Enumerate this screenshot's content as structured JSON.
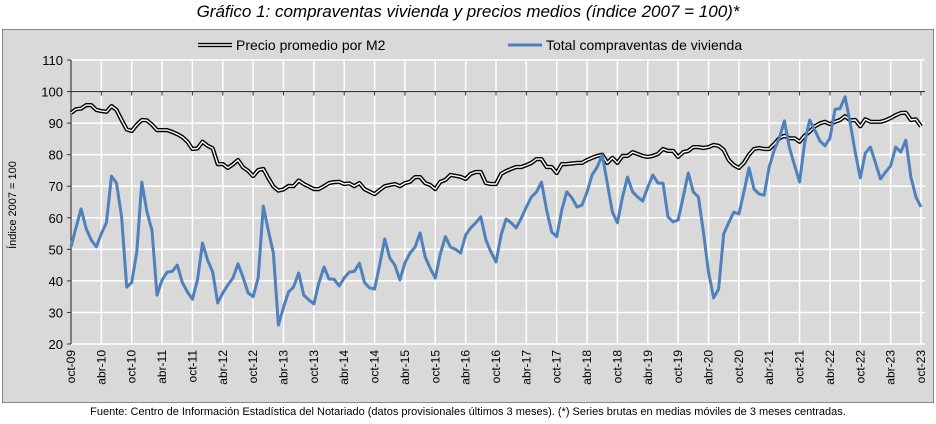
{
  "title": "Gráfico 1: compraventas vivienda y precios medios (índice 2007 = 100)*",
  "footer": "Fuente: Centro de Información Estadística del Notariado (datos provisionales últimos 3 meses). (*) Series brutas en medias móviles de 3 meses centradas.",
  "chart_data": {
    "type": "line",
    "title": "Gráfico 1: compraventas vivienda y precios medios (índice 2007 = 100)*",
    "xlabel": "",
    "ylabel": "Índice 2007 = 100",
    "ylim": [
      20,
      110
    ],
    "yticks": [
      20,
      30,
      40,
      50,
      60,
      70,
      80,
      90,
      100,
      110
    ],
    "grid": true,
    "legend_position": "top",
    "x_start": "oct-09",
    "x_end": "oct-23",
    "x_frequency": "monthly",
    "xtick_labels": [
      "oct-09",
      "abr-10",
      "oct-10",
      "abr-11",
      "oct-11",
      "abr-12",
      "oct-12",
      "abr-13",
      "oct-13",
      "abr-14",
      "oct-14",
      "abr-15",
      "oct-15",
      "abr-16",
      "oct-16",
      "abr-17",
      "oct-17",
      "abr-18",
      "oct-18",
      "abr-19",
      "oct-19",
      "abr-20",
      "oct-20",
      "abr-21",
      "oct-21",
      "abr-22",
      "oct-22",
      "abr-23",
      "oct-23"
    ],
    "series": [
      {
        "name": "Precio promedio por M2",
        "color": "#000000",
        "style": "double",
        "values": [
          93.2,
          94.4,
          94.6,
          95.7,
          95.7,
          94.2,
          93.8,
          93.6,
          95.4,
          94.2,
          91,
          88,
          87.5,
          89.5,
          91,
          90.9,
          89.5,
          87.8,
          87.8,
          87.8,
          87.2,
          86.5,
          85.6,
          84.1,
          81.8,
          82,
          84.1,
          82.8,
          82,
          77,
          77,
          75.8,
          76.9,
          78.3,
          76,
          74.9,
          73.2,
          75.1,
          75.5,
          72.6,
          69.9,
          68.6,
          69,
          70.1,
          70,
          71.8,
          70.7,
          69.9,
          69.1,
          69.1,
          70,
          71,
          71.3,
          71.4,
          70.7,
          70.9,
          70,
          71,
          69.1,
          68.3,
          67.5,
          68.8,
          70,
          70.4,
          70.7,
          70,
          71,
          71.4,
          72.9,
          72.9,
          71,
          70.4,
          69.1,
          71.4,
          72,
          73.6,
          73.3,
          73,
          72.3,
          73.9,
          74.5,
          74.5,
          71,
          70.7,
          70.7,
          73.9,
          74.8,
          75.5,
          76.1,
          76.1,
          76.7,
          77.4,
          78.6,
          78.6,
          76.1,
          76.1,
          74.2,
          77,
          77,
          77.2,
          77.4,
          77.4,
          78.3,
          79,
          79.6,
          80,
          77.4,
          79,
          77.4,
          79.6,
          79.6,
          80.8,
          80.2,
          79.6,
          79.3,
          79.6,
          80.2,
          81.8,
          81.2,
          81.2,
          79.3,
          80.8,
          81.2,
          82.4,
          82.4,
          82.1,
          82.4,
          83.1,
          82.8,
          81.5,
          78.3,
          76.7,
          75.8,
          77.4,
          80,
          81.8,
          82.1,
          81.8,
          81.8,
          83.4,
          85.2,
          86,
          85.2,
          85.2,
          84.1,
          86,
          87.3,
          89,
          89.9,
          90.4,
          89.7,
          90.4,
          91,
          92.2,
          90.9,
          91,
          89,
          91.2,
          90.4,
          90.4,
          90.4,
          90.9,
          91.6,
          92.5,
          93.2,
          93.3,
          91,
          91.2,
          89
        ]
      },
      {
        "name": "Total compraventas de vivienda",
        "color": "#4f81bd",
        "style": "solid",
        "values": [
          50.8,
          57,
          62.8,
          56.5,
          53,
          50.8,
          55,
          58.4,
          73.2,
          71,
          60.3,
          38,
          39.5,
          49.2,
          71.3,
          62,
          56,
          35.5,
          40.3,
          42.8,
          43,
          45,
          39.5,
          36.5,
          34.2,
          40.3,
          52,
          46.6,
          42.8,
          33,
          36.2,
          38.7,
          40.9,
          45.4,
          41.2,
          36.2,
          35,
          41,
          63.7,
          56,
          48.8,
          26,
          31.7,
          36.5,
          38.1,
          42.5,
          35.5,
          34,
          32.7,
          39.4,
          44.4,
          40.6,
          40.5,
          38.4,
          40.9,
          42.8,
          43,
          45.6,
          39.5,
          37.8,
          37.4,
          45,
          53.3,
          47.3,
          45,
          40.3,
          45.7,
          48.8,
          50.7,
          55.2,
          47.6,
          44,
          40.9,
          48.5,
          54,
          50.7,
          50,
          48.8,
          54.5,
          56.8,
          58.4,
          60.3,
          53,
          49.2,
          46,
          54.5,
          59.6,
          58.4,
          56.8,
          59.9,
          63.4,
          66.6,
          68.2,
          71.3,
          62.5,
          55.5,
          54,
          62.5,
          68.2,
          66.3,
          63.4,
          64,
          68.2,
          73.6,
          76.1,
          79.9,
          71,
          61.8,
          58.4,
          66.6,
          72.9,
          68.2,
          66.6,
          65.3,
          69.7,
          73.6,
          71,
          71,
          60.3,
          58.7,
          59.3,
          66.6,
          74.2,
          68.2,
          66.6,
          55.5,
          42.8,
          34.6,
          37.4,
          54.9,
          58.4,
          61.8,
          61.2,
          68.2,
          75.8,
          69.1,
          67.5,
          67.2,
          76.1,
          81.5,
          85.2,
          90.7,
          82.1,
          76.7,
          71.3,
          83.7,
          91,
          87.8,
          84.4,
          82.8,
          85.2,
          94.4,
          94.6,
          98.3,
          90,
          80.8,
          72.6,
          80.5,
          82.4,
          77.4,
          72.3,
          74.5,
          76.4,
          82.4,
          80.8,
          84.6,
          72.9,
          66.6,
          63.4
        ]
      }
    ]
  }
}
